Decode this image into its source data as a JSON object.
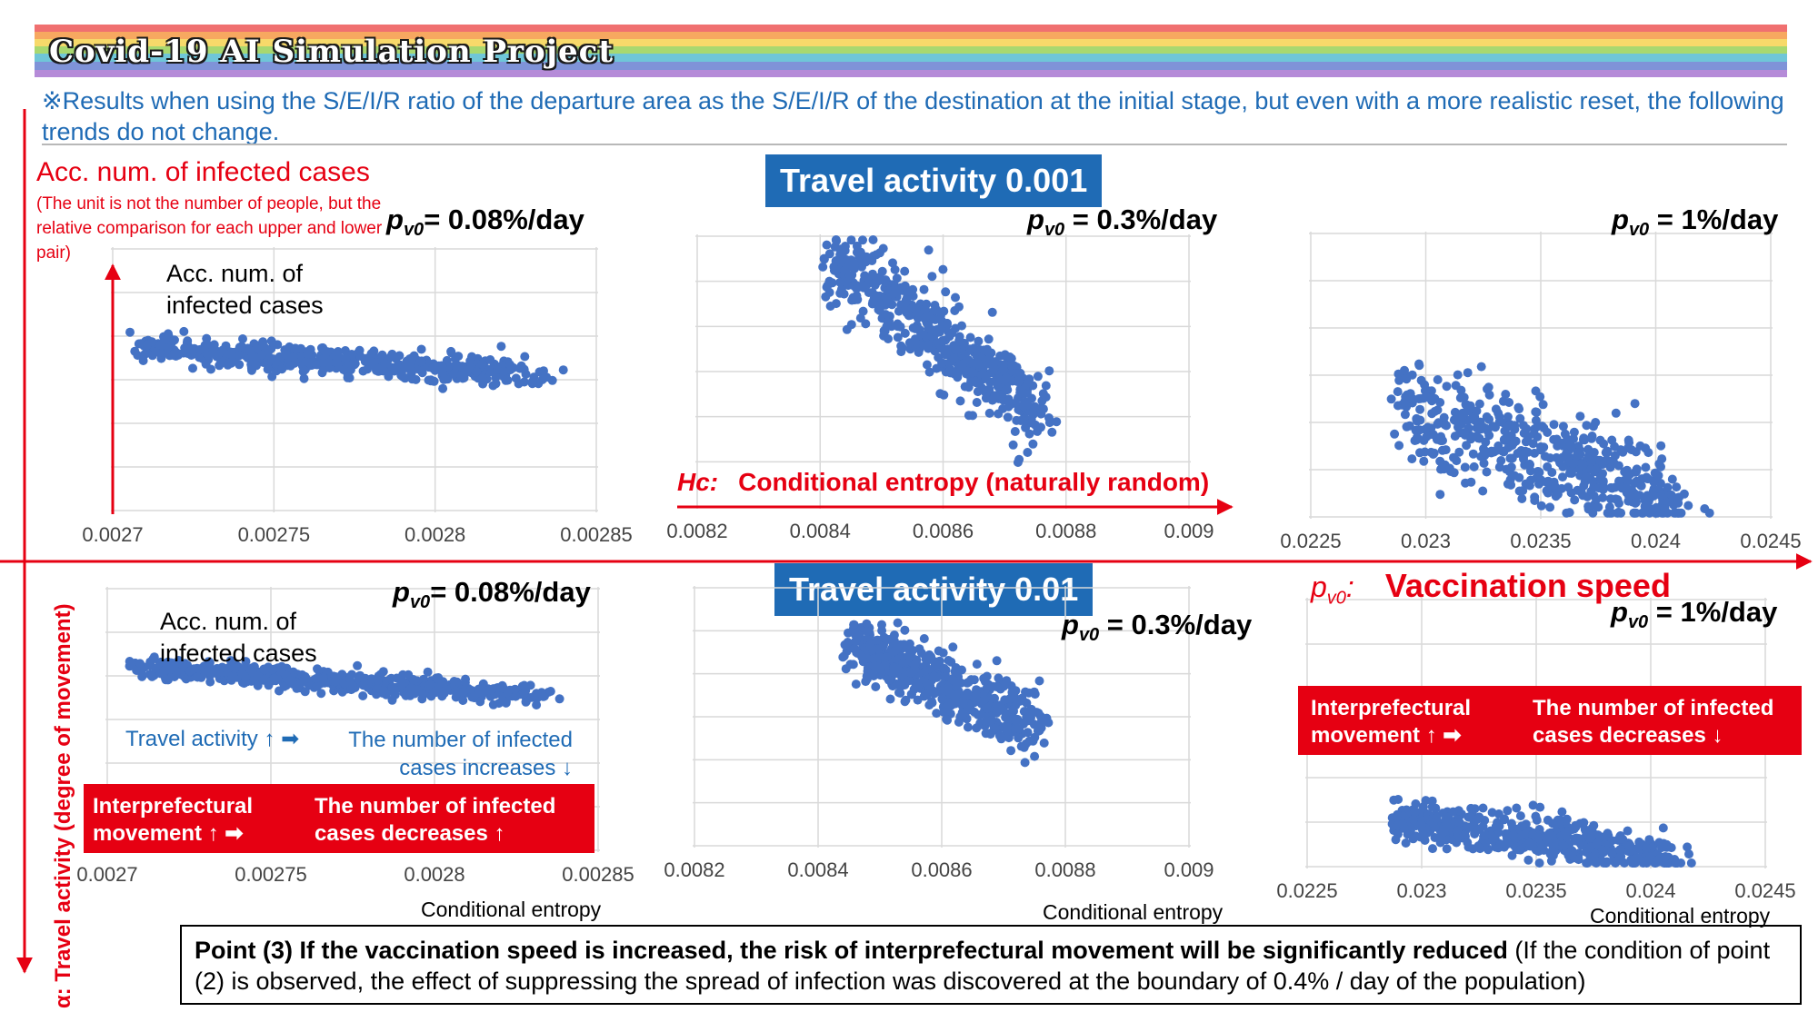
{
  "banner": {
    "title": "Covid-19 AI Simulation Project",
    "colors": [
      "#f07070",
      "#f7a860",
      "#f7d96a",
      "#a8d870",
      "#6fc6d8",
      "#7f93d8",
      "#b58bd8"
    ]
  },
  "note": "※Results when using the S/E/I/R ratio of the departure area as the S/E/I/R of the destination at the initial stage, but even with a more realistic reset, the following trends do not change.",
  "y_axis": {
    "title": "Acc. num. of infected cases",
    "description": "(The unit is not the number of people, but the relative comparison for each upper and lower pair)"
  },
  "plot_label": "Acc. num. of infected cases",
  "travel_boxes": {
    "top": "Travel activity 0.001",
    "bottom": "Travel activity 0.01"
  },
  "pv_labels": {
    "p": "p",
    "sub": "v0",
    "low": "= 0.08%/day",
    "mid": " = 0.3%/day",
    "high": " = 1%/day"
  },
  "hc_axis": {
    "symbol": "Hc:",
    "label": "Conditional entropy (naturally random)"
  },
  "vacc_axis": {
    "symbol_p": "p",
    "symbol_sub": "v0",
    "symbol_suffix": ":",
    "label": "Vaccination speed"
  },
  "alpha_axis": "α: Travel activity (degree of movement)",
  "blue_annotation": {
    "left": "Travel activity ↑ ➡",
    "right": "The number of infected cases increases ↓"
  },
  "red_box_bottom_left": {
    "left": "Interprefectural movement ↑ ➡",
    "right": "The number of infected cases decreases ↑"
  },
  "red_box_right": {
    "left": "Interprefectural movement ↑ ➡",
    "right": "The number of infected cases decreases ↓"
  },
  "axis_name": "Conditional entropy",
  "point_box": {
    "bold": "Point (3) If the vaccination speed is increased, the risk of interprefectural movement will be significantly reduced",
    "normal": " (If the condition of point (2) is observed, the effect of suppressing the spread of infection was discovered at the boundary of 0.4% / day of the population)"
  },
  "chart_data": [
    {
      "type": "scatter",
      "panel": "top-left",
      "xlim": [
        0.0027,
        0.00285
      ],
      "xticks": [
        "0.0027",
        "0.00275",
        "0.0028",
        "0.00285"
      ],
      "point_color": "#4472c4",
      "cluster": {
        "x_start": 0.00271,
        "x_end": 0.00284,
        "y_start": 0.62,
        "y_end": 0.51,
        "spread": 0.025
      },
      "grid": true
    },
    {
      "type": "scatter",
      "panel": "top-middle",
      "xlim": [
        0.0082,
        0.009
      ],
      "xticks": [
        "0.0082",
        "0.0084",
        "0.0086",
        "0.0088",
        "0.009"
      ],
      "point_color": "#4472c4",
      "cluster": {
        "x_start": 0.00842,
        "x_end": 0.00878,
        "y_start": 0.92,
        "y_end": 0.3,
        "spread": 0.07
      },
      "grid": true
    },
    {
      "type": "scatter",
      "panel": "top-right",
      "xlim": [
        0.0225,
        0.0245
      ],
      "xticks": [
        "0.0225",
        "0.023",
        "0.0235",
        "0.024",
        "0.0245"
      ],
      "point_color": "#4472c4",
      "cluster": {
        "x_start": 0.0229,
        "x_end": 0.0242,
        "y_start": 0.38,
        "y_end": 0.03,
        "spread": 0.09
      },
      "grid": true
    },
    {
      "type": "scatter",
      "panel": "bottom-left",
      "xlim": [
        0.0027,
        0.00285
      ],
      "xticks": [
        "0.0027",
        "0.00275",
        "0.0028",
        "0.00285"
      ],
      "point_color": "#4472c4",
      "cluster": {
        "x_start": 0.00271,
        "x_end": 0.00284,
        "y_start": 0.7,
        "y_end": 0.58,
        "spread": 0.02
      },
      "grid": true
    },
    {
      "type": "scatter",
      "panel": "bottom-middle",
      "xlim": [
        0.0082,
        0.009
      ],
      "xticks": [
        "0.0082",
        "0.0084",
        "0.0086",
        "0.0088",
        "0.009"
      ],
      "point_color": "#4472c4",
      "cluster": {
        "x_start": 0.00845,
        "x_end": 0.00878,
        "y_start": 0.78,
        "y_end": 0.43,
        "spread": 0.06
      },
      "grid": true
    },
    {
      "type": "scatter",
      "panel": "bottom-right",
      "xlim": [
        0.0225,
        0.0245
      ],
      "xticks": [
        "0.0225",
        "0.023",
        "0.0235",
        "0.024",
        "0.0245"
      ],
      "point_color": "#4472c4",
      "cluster": {
        "x_start": 0.0229,
        "x_end": 0.0242,
        "y_start": 0.18,
        "y_end": 0.03,
        "spread": 0.04
      },
      "grid": true
    }
  ]
}
